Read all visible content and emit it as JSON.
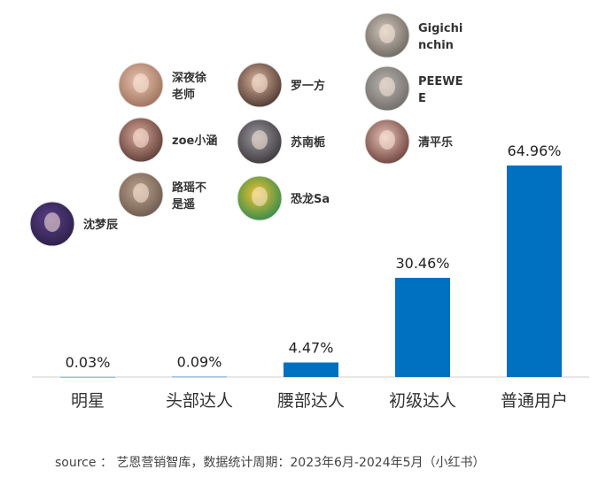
{
  "chart_data": {
    "type": "bar",
    "categories": [
      "明星",
      "头部达人",
      "腰部达人",
      "初级达人",
      "普通用户"
    ],
    "values": [
      0.03,
      0.09,
      4.47,
      30.46,
      64.96
    ],
    "value_labels": [
      "0.03%",
      "0.09%",
      "4.47%",
      "30.46%",
      "64.96%"
    ],
    "bar_color": "#0070c0",
    "ylim": [
      0,
      64.96
    ],
    "grid": false,
    "influencers": [
      {
        "category": "明星",
        "names": [
          [
            "沈梦辰"
          ]
        ]
      },
      {
        "category": "头部达人",
        "names": [
          [
            "深夜徐",
            "老师"
          ],
          [
            "zoe小涵"
          ],
          [
            "路瑶不",
            "是遥"
          ]
        ]
      },
      {
        "category": "腰部达人",
        "names": [
          [
            "罗一方"
          ],
          [
            "苏南栀"
          ],
          [
            "恐龙Sa"
          ]
        ]
      },
      {
        "category": "初级达人",
        "names": [
          [
            "Gigichi",
            "nchin"
          ],
          [
            "PEEWE",
            "E"
          ],
          [
            "清平乐"
          ]
        ]
      }
    ]
  },
  "source": "source ： 艺恩营销智库，数据统计周期：2023年6月-2024年5月（小红书）"
}
